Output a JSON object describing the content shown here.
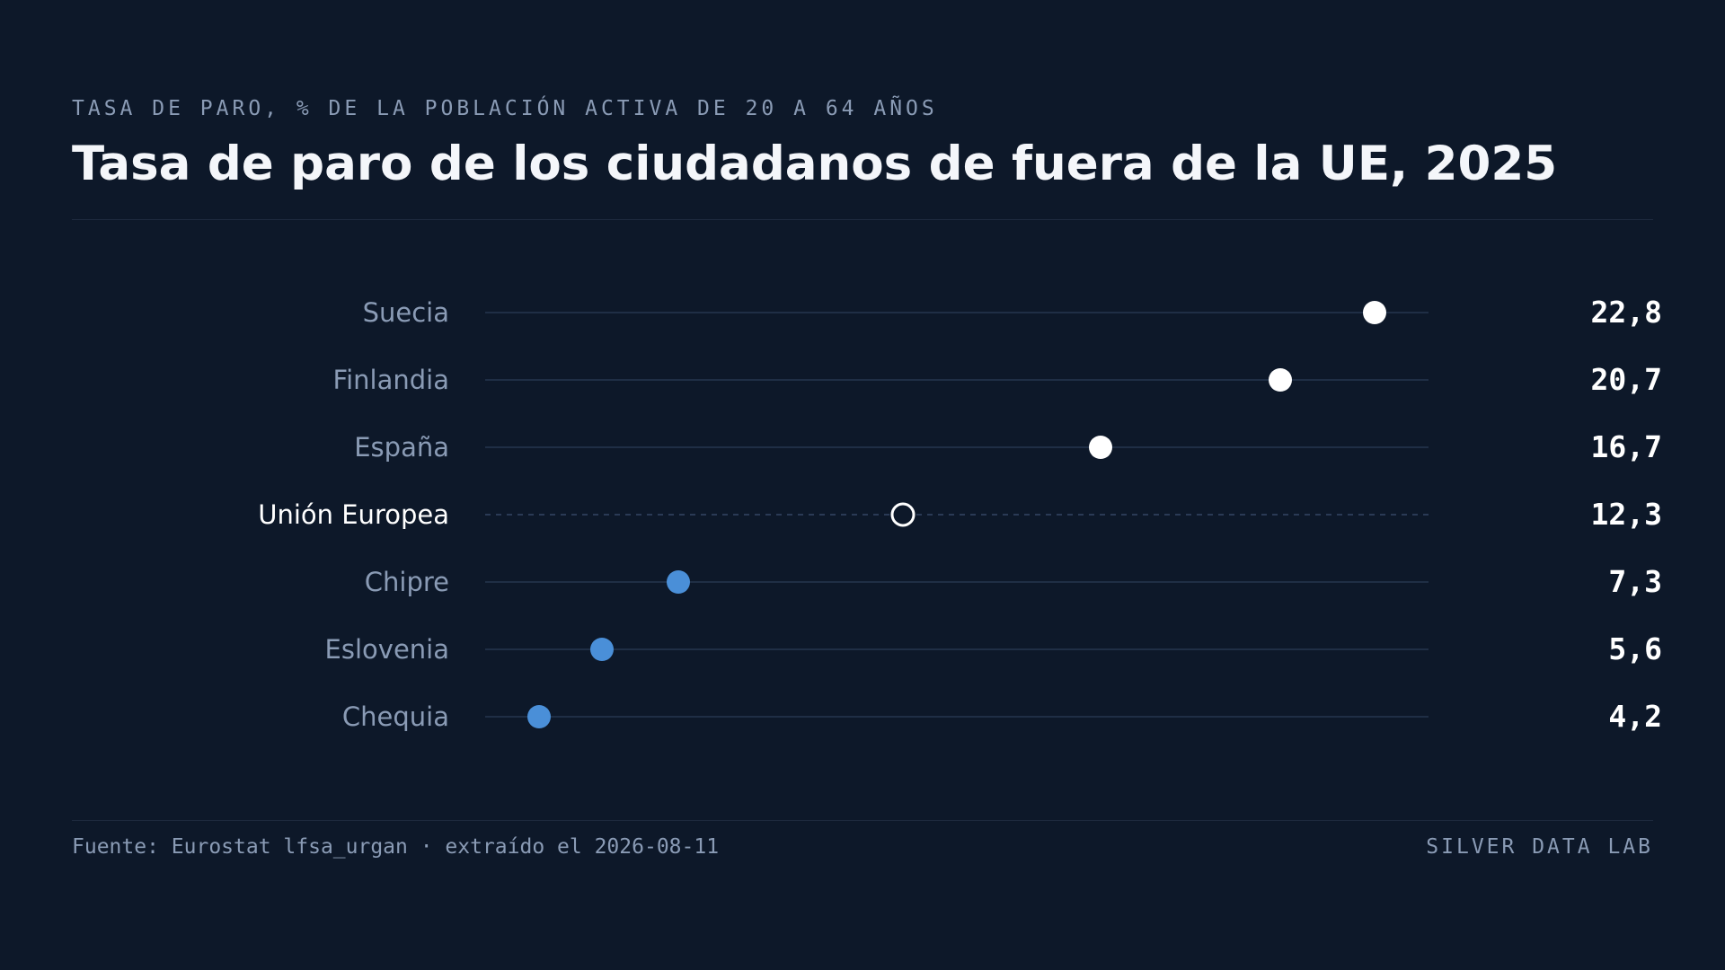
{
  "header": {
    "kicker": "TASA DE PARO, % DE LA POBLACIÓN ACTIVA DE 20 A 64 AÑOS",
    "title": "Tasa de paro de los ciudadanos de fuera de la UE, 2025"
  },
  "footer": {
    "source": "Fuente: Eurostat lfsa_urgan · extraído el 2026-08-11",
    "brand": "SILVER DATA LAB"
  },
  "colors": {
    "background": "#0d1829",
    "high_dot": "#ffffff",
    "low_dot": "#4a8fd8",
    "reference_dot_stroke": "#ffffff",
    "track": "#1f2e45",
    "label": "#8a9bb5",
    "reference_label": "#ffffff",
    "value_text": "#ffffff"
  },
  "chart_data": {
    "type": "dot",
    "title": "Tasa de paro de los ciudadanos de fuera de la UE, 2025",
    "subtitle": "TASA DE PARO, % DE LA POBLACIÓN ACTIVA DE 20 A 64 AÑOS",
    "xlabel": "",
    "ylabel": "",
    "xlim": [
      3,
      24
    ],
    "grid": false,
    "legend": "none",
    "categories": [
      "Suecia",
      "Finlandia",
      "España",
      "Unión Europea",
      "Chipre",
      "Eslovenia",
      "Chequia"
    ],
    "values": [
      22.8,
      20.7,
      16.7,
      12.3,
      7.3,
      5.6,
      4.2
    ],
    "value_labels": [
      "22,8",
      "20,7",
      "16,7",
      "12,3",
      "7,3",
      "5,6",
      "4,2"
    ],
    "reference_category": "Unión Europea",
    "groups": [
      "above",
      "above",
      "above",
      "reference",
      "below",
      "below",
      "below"
    ]
  }
}
